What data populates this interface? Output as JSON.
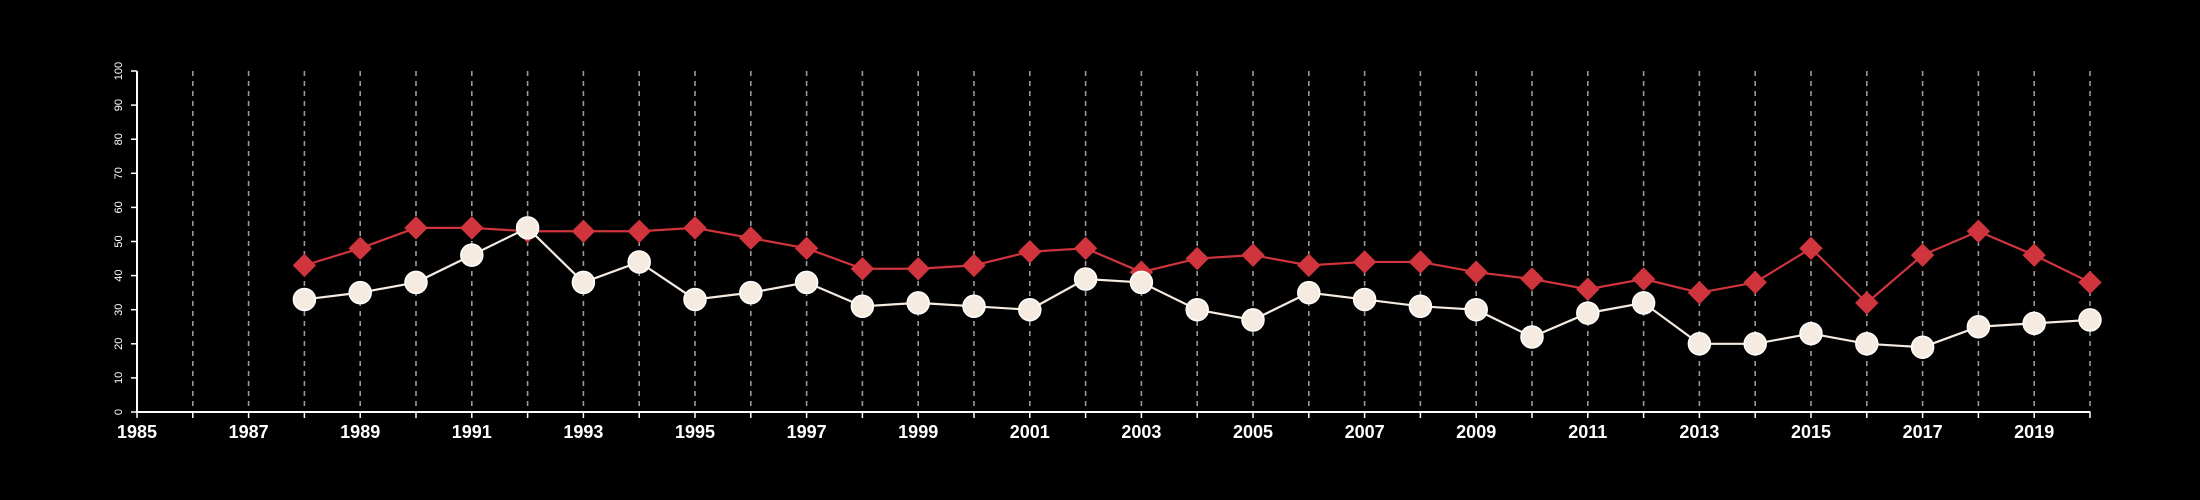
{
  "chart_data": {
    "type": "line",
    "title": "",
    "xlabel": "",
    "ylabel": "",
    "xlim": [
      1985,
      2020
    ],
    "ylim": [
      0,
      100
    ],
    "x_ticks": [
      1985,
      1987,
      1989,
      1991,
      1993,
      1995,
      1997,
      1999,
      2001,
      2003,
      2005,
      2007,
      2009,
      2011,
      2013,
      2015,
      2017,
      2019
    ],
    "y_ticks": [
      0,
      10,
      20,
      30,
      40,
      50,
      60,
      70,
      80,
      90,
      100
    ],
    "vertical_grid": "dashed, every year",
    "x": [
      1988,
      1989,
      1990,
      1991,
      1992,
      1993,
      1994,
      1995,
      1996,
      1997,
      1998,
      1999,
      2000,
      2001,
      2002,
      2003,
      2004,
      2005,
      2006,
      2007,
      2008,
      2009,
      2010,
      2011,
      2012,
      2013,
      2014,
      2015,
      2016,
      2017,
      2018,
      2019,
      2020
    ],
    "series": [
      {
        "marker": "diamond",
        "color": "#d0343c",
        "values": [
          43,
          48,
          54,
          54,
          53,
          53,
          53,
          54,
          51,
          48,
          42,
          42,
          43,
          47,
          48,
          41,
          45,
          46,
          43,
          44,
          44,
          41,
          39,
          36,
          39,
          35,
          38,
          48,
          32,
          46,
          53,
          46,
          38
        ]
      },
      {
        "marker": "circle",
        "color": "#f5ebe0",
        "values": [
          33,
          35,
          38,
          46,
          54,
          38,
          44,
          33,
          35,
          38,
          31,
          32,
          31,
          30,
          39,
          38,
          30,
          27,
          35,
          33,
          31,
          30,
          22,
          29,
          32,
          20,
          20,
          23,
          20,
          19,
          25,
          26,
          27
        ]
      }
    ]
  }
}
